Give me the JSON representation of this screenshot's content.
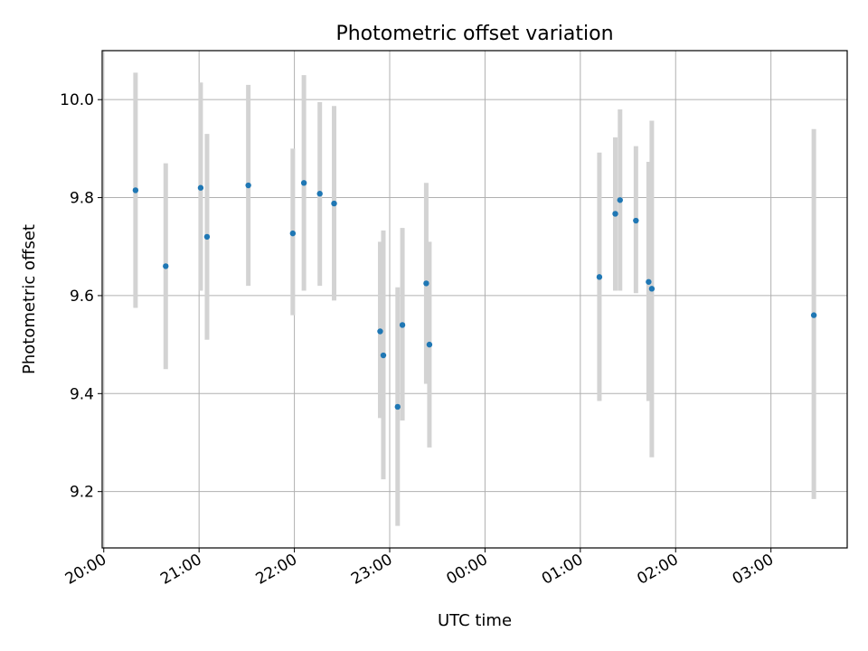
{
  "chart_data": {
    "type": "scatter",
    "title": "Photometric offset variation",
    "xlabel": "UTC time",
    "ylabel": "Photometric offset",
    "x_tick_labels": [
      "20:00",
      "21:00",
      "22:00",
      "23:00",
      "00:00",
      "01:00",
      "02:00",
      "03:00"
    ],
    "y_tick_labels": [
      "9.2",
      "9.4",
      "9.6",
      "9.8",
      "10.0"
    ],
    "y_ticks": [
      9.2,
      9.4,
      9.6,
      9.8,
      10.0
    ],
    "xlim": [
      "19:59",
      "03:48"
    ],
    "ylim": [
      9.085,
      10.1
    ],
    "grid": true,
    "legend": "none",
    "colors": {
      "marker": "#1f77b4",
      "errorbar": "#d3d3d3",
      "grid": "#b0b0b0"
    },
    "series": [
      {
        "points": [
          {
            "x": "20:20",
            "y": 9.815,
            "low": 9.575,
            "high": 10.055
          },
          {
            "x": "20:39",
            "y": 9.66,
            "low": 9.45,
            "high": 9.87
          },
          {
            "x": "21:01",
            "y": 9.82,
            "low": 9.61,
            "high": 10.035
          },
          {
            "x": "21:05",
            "y": 9.72,
            "low": 9.51,
            "high": 9.93
          },
          {
            "x": "21:31",
            "y": 9.825,
            "low": 9.62,
            "high": 10.03
          },
          {
            "x": "21:59",
            "y": 9.727,
            "low": 9.56,
            "high": 9.9
          },
          {
            "x": "22:06",
            "y": 9.83,
            "low": 9.61,
            "high": 10.05
          },
          {
            "x": "22:16",
            "y": 9.808,
            "low": 9.62,
            "high": 9.995
          },
          {
            "x": "22:25",
            "y": 9.788,
            "low": 9.59,
            "high": 9.987
          },
          {
            "x": "22:54",
            "y": 9.527,
            "low": 9.35,
            "high": 9.71
          },
          {
            "x": "22:56",
            "y": 9.478,
            "low": 9.225,
            "high": 9.733
          },
          {
            "x": "23:05",
            "y": 9.373,
            "low": 9.13,
            "high": 9.617
          },
          {
            "x": "23:08",
            "y": 9.54,
            "low": 9.345,
            "high": 9.738
          },
          {
            "x": "23:23",
            "y": 9.625,
            "low": 9.42,
            "high": 9.83
          },
          {
            "x": "23:25",
            "y": 9.5,
            "low": 9.29,
            "high": 9.71
          },
          {
            "x": "01:12",
            "y": 9.638,
            "low": 9.385,
            "high": 9.892
          },
          {
            "x": "01:22",
            "y": 9.767,
            "low": 9.61,
            "high": 9.923
          },
          {
            "x": "01:25",
            "y": 9.795,
            "low": 9.61,
            "high": 9.98
          },
          {
            "x": "01:35",
            "y": 9.753,
            "low": 9.605,
            "high": 9.905
          },
          {
            "x": "01:43",
            "y": 9.628,
            "low": 9.385,
            "high": 9.873
          },
          {
            "x": "01:45",
            "y": 9.614,
            "low": 9.27,
            "high": 9.957
          },
          {
            "x": "03:27",
            "y": 9.56,
            "low": 9.185,
            "high": 9.94
          }
        ]
      }
    ]
  }
}
